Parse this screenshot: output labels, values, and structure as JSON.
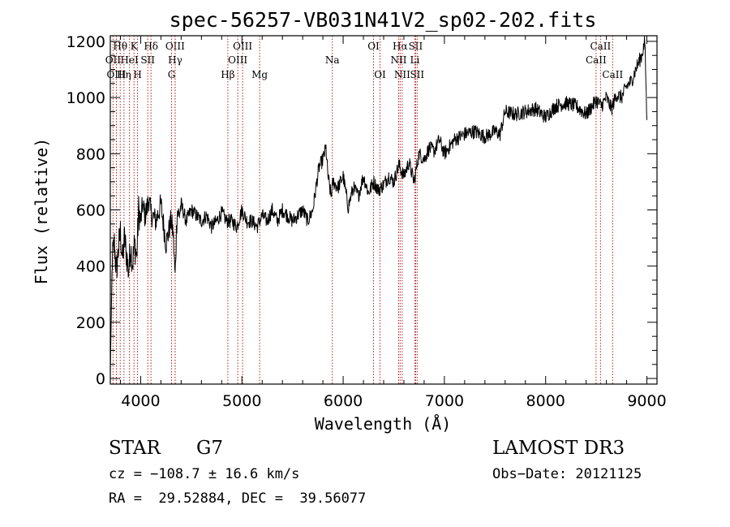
{
  "chart_data": {
    "type": "line",
    "title": "spec-56257-VB031N41V2_sp02-202.fits",
    "xlabel": "Wavelength (Å)",
    "ylabel": "Flux (relative)",
    "xlim": [
      3700,
      9100
    ],
    "ylim": [
      -20,
      1220
    ],
    "xticks": [
      4000,
      5000,
      6000,
      7000,
      8000,
      9000
    ],
    "yticks": [
      0,
      200,
      400,
      600,
      800,
      1000,
      1200
    ],
    "series": [
      {
        "name": "flux",
        "x": [
          3700,
          3720,
          3740,
          3760,
          3780,
          3800,
          3820,
          3840,
          3860,
          3880,
          3900,
          3920,
          3940,
          3960,
          3980,
          4000,
          4020,
          4040,
          4060,
          4080,
          4100,
          4150,
          4200,
          4250,
          4300,
          4320,
          4340,
          4360,
          4380,
          4400,
          4450,
          4500,
          4550,
          4600,
          4650,
          4700,
          4750,
          4800,
          4850,
          4900,
          4950,
          5000,
          5050,
          5100,
          5150,
          5200,
          5250,
          5300,
          5350,
          5400,
          5450,
          5500,
          5550,
          5600,
          5650,
          5700,
          5740,
          5760,
          5800,
          5830,
          5850,
          5880,
          5900,
          5950,
          6000,
          6050,
          6100,
          6150,
          6200,
          6250,
          6300,
          6350,
          6400,
          6450,
          6500,
          6550,
          6600,
          6650,
          6700,
          6750,
          6800,
          6850,
          6900,
          6950,
          7000,
          7100,
          7200,
          7300,
          7400,
          7500,
          7550,
          7600,
          7700,
          7800,
          7900,
          8000,
          8100,
          8200,
          8300,
          8400,
          8500,
          8550,
          8600,
          8650,
          8700,
          8750,
          8800,
          8850,
          8900,
          8950,
          8980,
          9000
        ],
        "y": [
          20,
          430,
          480,
          380,
          460,
          520,
          420,
          500,
          440,
          380,
          470,
          410,
          480,
          430,
          600,
          560,
          620,
          580,
          600,
          640,
          590,
          560,
          620,
          480,
          560,
          520,
          360,
          600,
          580,
          620,
          560,
          600,
          580,
          560,
          580,
          540,
          560,
          590,
          560,
          560,
          540,
          600,
          560,
          560,
          540,
          580,
          560,
          600,
          560,
          600,
          580,
          560,
          580,
          600,
          560,
          600,
          700,
          750,
          780,
          820,
          720,
          650,
          700,
          680,
          720,
          610,
          680,
          650,
          720,
          660,
          700,
          670,
          690,
          720,
          700,
          760,
          720,
          770,
          700,
          800,
          780,
          820,
          810,
          850,
          800,
          850,
          870,
          880,
          860,
          880,
          870,
          950,
          940,
          950,
          960,
          930,
          970,
          980,
          970,
          940,
          990,
          970,
          1000,
          960,
          1010,
          1000,
          1040,
          1060,
          1110,
          1150,
          1200,
          920
        ]
      }
    ],
    "lines": [
      {
        "label": "Hθ",
        "x": 3798,
        "row": 0
      },
      {
        "label": "K",
        "x": 3934,
        "row": 0
      },
      {
        "label": "Hδ",
        "x": 4102,
        "row": 0
      },
      {
        "label": "OII",
        "x": 3727,
        "row": 1
      },
      {
        "label": "HeI",
        "x": 3889,
        "row": 1
      },
      {
        "label": "SII",
        "x": 4070,
        "row": 1
      },
      {
        "label": "OIII",
        "x": 3760,
        "row": 2
      },
      {
        "label": "Hη",
        "x": 3835,
        "row": 2
      },
      {
        "label": "H",
        "x": 3969,
        "row": 2
      },
      {
        "label": "OIII",
        "x": 4340,
        "row": 0
      },
      {
        "label": "Hγ",
        "x": 4341,
        "row": 1
      },
      {
        "label": "G",
        "x": 4305,
        "row": 2
      },
      {
        "label": "OIII",
        "x": 5007,
        "row": 0
      },
      {
        "label": "OIII",
        "x": 4959,
        "row": 1
      },
      {
        "label": "Hβ",
        "x": 4861,
        "row": 2
      },
      {
        "label": "Mg",
        "x": 5175,
        "row": 2
      },
      {
        "label": "Na",
        "x": 5893,
        "row": 1
      },
      {
        "label": "OI",
        "x": 6300,
        "row": 0
      },
      {
        "label": "OI",
        "x": 6364,
        "row": 2
      },
      {
        "label": "Hα",
        "x": 6563,
        "row": 0
      },
      {
        "label": "SII",
        "x": 6716,
        "row": 0
      },
      {
        "label": "NII",
        "x": 6548,
        "row": 1
      },
      {
        "label": "Li",
        "x": 6708,
        "row": 1
      },
      {
        "label": "NII",
        "x": 6583,
        "row": 2
      },
      {
        "label": "SII",
        "x": 6731,
        "row": 2
      },
      {
        "label": "CaII",
        "x": 8542,
        "row": 0
      },
      {
        "label": "CaII",
        "x": 8498,
        "row": 1
      },
      {
        "label": "CaII",
        "x": 8662,
        "row": 2
      }
    ]
  },
  "info": {
    "class": "STAR",
    "subclass": "G7",
    "survey": "LAMOST DR3",
    "cz": "cz = −108.7 ± 16.6 km/s",
    "obs_date": "Obs−Date: 20121125",
    "coords": "RA =  29.52884, DEC =  39.56077"
  }
}
